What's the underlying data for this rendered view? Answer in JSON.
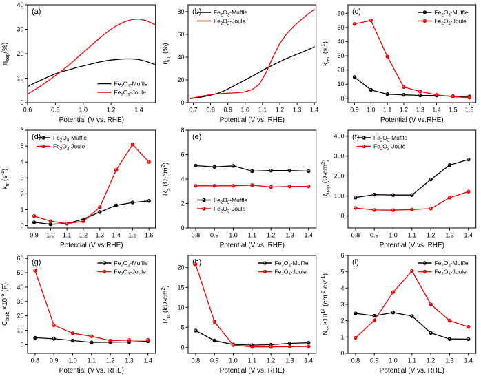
{
  "figure": {
    "background": "#ffffff",
    "series_colors": {
      "muffle": "#000000",
      "joule": "#ee0000"
    }
  },
  "chart_data": [
    {
      "id": "a",
      "type": "line",
      "tag": "(a)",
      "xlabel": "Potential (V vs. RHE)",
      "ylabel": "η~sep~(%)",
      "xlim": [
        0.6,
        1.52
      ],
      "ylim": [
        0,
        40
      ],
      "xticks": [
        "0.6",
        "0.8",
        "1.0",
        "1.2",
        "1.4"
      ],
      "yticks": [
        "0",
        "10",
        "20",
        "30",
        "40"
      ],
      "grid": false,
      "legend": {
        "position": "bottom-right",
        "show_marker": false
      },
      "series": [
        {
          "name": "Fe~2~O~3~-Muffle",
          "color": "#000000",
          "marker": false,
          "x": [
            0.6,
            0.65,
            0.7,
            0.75,
            0.8,
            0.85,
            0.9,
            0.95,
            1.0,
            1.05,
            1.1,
            1.15,
            1.2,
            1.25,
            1.3,
            1.35,
            1.4,
            1.45,
            1.52
          ],
          "y": [
            6.5,
            8.0,
            9.3,
            10.6,
            11.8,
            12.7,
            13.5,
            14.3,
            15.0,
            15.7,
            16.4,
            17.0,
            17.4,
            17.7,
            17.9,
            17.9,
            17.6,
            16.9,
            15.5
          ]
        },
        {
          "name": "Fe~2~O~3~-Joule",
          "color": "#ee0000",
          "marker": false,
          "x": [
            0.6,
            0.65,
            0.7,
            0.75,
            0.8,
            0.85,
            0.9,
            0.95,
            1.0,
            1.05,
            1.1,
            1.15,
            1.2,
            1.25,
            1.3,
            1.35,
            1.4,
            1.45,
            1.52
          ],
          "y": [
            3.5,
            5.2,
            7.0,
            9.0,
            11.0,
            13.2,
            15.5,
            18.0,
            20.5,
            23.0,
            25.5,
            27.9,
            30.0,
            31.8,
            33.1,
            34.0,
            34.2,
            33.6,
            31.8
          ]
        }
      ]
    },
    {
      "id": "b",
      "type": "line",
      "tag": "(b)",
      "xlabel": "Potential (V vs. RHE)",
      "ylabel": "η~inj~ (%)",
      "xlim": [
        0.67,
        1.41
      ],
      "ylim": [
        0,
        86
      ],
      "xticks": [
        "0.7",
        "0.8",
        "0.9",
        "1.0",
        "1.1",
        "1.2",
        "1.3",
        "1.4"
      ],
      "yticks": [
        "0",
        "20",
        "40",
        "60",
        "80"
      ],
      "grid": false,
      "legend": {
        "position": "top-left",
        "show_marker": false
      },
      "series": [
        {
          "name": "Fe~2~O~3~-Muffle",
          "color": "#000000",
          "marker": false,
          "x": [
            0.68,
            0.72,
            0.76,
            0.8,
            0.84,
            0.88,
            0.92,
            0.96,
            1.0,
            1.04,
            1.08,
            1.12,
            1.16,
            1.2,
            1.24,
            1.28,
            1.32,
            1.36,
            1.4
          ],
          "y": [
            3.5,
            4.2,
            5.2,
            6.5,
            8.2,
            10.5,
            13.5,
            16.8,
            20.0,
            23.2,
            26.5,
            30.0,
            33.0,
            36.0,
            38.8,
            41.3,
            43.8,
            46.3,
            49.0
          ]
        },
        {
          "name": "Fe~2~O~3~-Joule",
          "color": "#ee0000",
          "marker": false,
          "x": [
            0.68,
            0.72,
            0.76,
            0.8,
            0.84,
            0.88,
            0.92,
            0.96,
            1.0,
            1.04,
            1.08,
            1.12,
            1.16,
            1.2,
            1.24,
            1.28,
            1.32,
            1.36,
            1.4
          ],
          "y": [
            3.5,
            4.8,
            6.0,
            7.0,
            7.8,
            8.2,
            8.5,
            8.8,
            9.5,
            11.5,
            16.0,
            26.0,
            40.0,
            52.0,
            60.5,
            67.0,
            72.5,
            77.5,
            82.0
          ]
        }
      ]
    },
    {
      "id": "c",
      "type": "line",
      "tag": "(c)",
      "xlabel": "Potential (V vs.RHE)",
      "ylabel": "k~rec~ (s^-1^)",
      "xlim": [
        0.86,
        1.64
      ],
      "ylim": [
        -3,
        66
      ],
      "xticks": [
        "0.9",
        "1.0",
        "1.1",
        "1.2",
        "1.3",
        "1.4",
        "1.5",
        "1.6"
      ],
      "yticks": [
        "0",
        "10",
        "20",
        "30",
        "40",
        "50",
        "60"
      ],
      "grid": false,
      "legend": {
        "position": "top-right",
        "show_marker": true
      },
      "series": [
        {
          "name": "Fe~2~O~3~-Muffle",
          "color": "#000000",
          "marker": true,
          "x": [
            0.9,
            1.0,
            1.1,
            1.2,
            1.3,
            1.4,
            1.5,
            1.6
          ],
          "y": [
            15,
            6,
            3,
            2.5,
            2.1,
            2.0,
            1.5,
            1.3
          ]
        },
        {
          "name": "Fe~2~O~3~-Joule",
          "color": "#ee0000",
          "marker": true,
          "x": [
            0.9,
            1.0,
            1.1,
            1.2,
            1.3,
            1.4,
            1.5,
            1.6
          ],
          "y": [
            52.5,
            55,
            29.5,
            8,
            4.8,
            2.5,
            1.2,
            0.5
          ]
        }
      ]
    },
    {
      "id": "d",
      "type": "line",
      "tag": "(d)",
      "xlabel": "Potential (V vs.RHE)",
      "ylabel": "k~tr~ (s^-1^)",
      "xlim": [
        0.86,
        1.64
      ],
      "ylim": [
        -0.15,
        6
      ],
      "xticks": [
        "0.9",
        "1.0",
        "1.1",
        "1.2",
        "1.3",
        "1.4",
        "1.5",
        "1.6"
      ],
      "yticks": [
        "0",
        "1",
        "2",
        "3",
        "4",
        "5",
        "6"
      ],
      "grid": false,
      "legend": {
        "position": "top-left",
        "show_marker": true
      },
      "series": [
        {
          "name": "Fe~2~O~3~-Muffle",
          "color": "#000000",
          "marker": true,
          "x": [
            0.9,
            1.0,
            1.1,
            1.2,
            1.3,
            1.4,
            1.5,
            1.6
          ],
          "y": [
            0.2,
            0.08,
            0.12,
            0.4,
            0.85,
            1.27,
            1.45,
            1.55
          ]
        },
        {
          "name": "Fe~2~O~3~-Joule",
          "color": "#ee0000",
          "marker": true,
          "x": [
            0.9,
            1.0,
            1.1,
            1.2,
            1.3,
            1.4,
            1.5,
            1.6
          ],
          "y": [
            0.6,
            0.28,
            0.12,
            0.27,
            1.15,
            3.5,
            5.1,
            4.0
          ]
        }
      ]
    },
    {
      "id": "e",
      "type": "line",
      "tag": "(e)",
      "xlabel": "Potential (V vs. RHE)",
      "ylabel": "R~s~ (Ω·cm^2^)",
      "xlim": [
        0.76,
        1.44
      ],
      "ylim": [
        0,
        8
      ],
      "xticks": [
        "0.8",
        "0.9",
        "1.0",
        "1.1",
        "1.2",
        "1.3",
        "1.4"
      ],
      "yticks": [
        "0",
        "2",
        "4",
        "6",
        "8"
      ],
      "grid": false,
      "legend": {
        "position": "bottom-left",
        "show_marker": true
      },
      "series": [
        {
          "name": "Fe~2~O~3~-Muffle",
          "color": "#000000",
          "marker": true,
          "x": [
            0.8,
            0.9,
            1.0,
            1.1,
            1.2,
            1.3,
            1.4
          ],
          "y": [
            5.1,
            5.0,
            5.08,
            4.65,
            4.7,
            4.7,
            4.65
          ]
        },
        {
          "name": "Fe~2~O~3~-Joule",
          "color": "#ee0000",
          "marker": true,
          "x": [
            0.8,
            0.9,
            1.0,
            1.1,
            1.2,
            1.3,
            1.4
          ],
          "y": [
            3.45,
            3.45,
            3.45,
            3.5,
            3.35,
            3.4,
            3.4
          ]
        }
      ]
    },
    {
      "id": "f",
      "type": "line",
      "tag": "(f)",
      "xlabel": "Potential (V vs. RHE)",
      "ylabel": "R~trap~ (Ω·cm^2^)",
      "xlim": [
        0.76,
        1.44
      ],
      "ylim": [
        -60,
        430
      ],
      "xticks": [
        "0.8",
        "0.9",
        "1.0",
        "1.1",
        "1.2",
        "1.3",
        "1.4"
      ],
      "yticks": [
        "0",
        "100",
        "200",
        "300",
        "400"
      ],
      "grid": false,
      "legend": {
        "position": "top-left",
        "show_marker": true
      },
      "series": [
        {
          "name": "Fe~2~O~3~-Muffle",
          "color": "#000000",
          "marker": true,
          "x": [
            0.8,
            0.9,
            1.0,
            1.1,
            1.2,
            1.3,
            1.4
          ],
          "y": [
            93,
            107,
            105,
            105,
            183,
            255,
            283
          ]
        },
        {
          "name": "Fe~2~O~3~-Joule",
          "color": "#ee0000",
          "marker": true,
          "x": [
            0.8,
            0.9,
            1.0,
            1.1,
            1.2,
            1.3,
            1.4
          ],
          "y": [
            40,
            30,
            29,
            32,
            37,
            92,
            122
          ]
        }
      ]
    },
    {
      "id": "g",
      "type": "line",
      "tag": "(g)",
      "xlabel": "Potential (V vs. RHE)",
      "ylabel": "C~bulk~ ×10^-5^ (F)",
      "xlim": [
        0.76,
        1.44
      ],
      "ylim": [
        -6,
        62
      ],
      "xticks": [
        "0.8",
        "0.9",
        "1.0",
        "1.1",
        "1.2",
        "1.3",
        "1.4"
      ],
      "yticks": [
        "0",
        "10",
        "20",
        "30",
        "40",
        "50",
        "60"
      ],
      "grid": false,
      "legend": {
        "position": "top-right",
        "show_marker": true
      },
      "series": [
        {
          "name": "Fe~2~O~3~-Muffle",
          "color": "#000000",
          "marker": true,
          "x": [
            0.8,
            0.9,
            1.0,
            1.1,
            1.2,
            1.3,
            1.4
          ],
          "y": [
            4.8,
            4.1,
            2.9,
            1.6,
            1.7,
            1.9,
            2.4
          ]
        },
        {
          "name": "Fe~2~O~3~-Joule",
          "color": "#ee0000",
          "marker": true,
          "x": [
            0.8,
            0.9,
            1.0,
            1.1,
            1.2,
            1.3,
            1.4
          ],
          "y": [
            51.5,
            13.5,
            8.0,
            5.8,
            2.8,
            3.2,
            3.3
          ]
        }
      ]
    },
    {
      "id": "h",
      "type": "line",
      "tag": "(h)",
      "xlabel": "Potential (V vs. RHE)",
      "ylabel": "R~ct~ (kΩ·cm^2^)",
      "xlim": [
        0.76,
        1.44
      ],
      "ylim": [
        -1.5,
        23
      ],
      "xticks": [
        "0.8",
        "0.9",
        "1.0",
        "1.1",
        "1.2",
        "1.3",
        "1.4"
      ],
      "yticks": [
        "0",
        "5",
        "10",
        "15",
        "20"
      ],
      "grid": false,
      "legend": {
        "position": "top-right",
        "show_marker": true
      },
      "series": [
        {
          "name": "Fe~2~O~3~-Muffle",
          "color": "#000000",
          "marker": true,
          "x": [
            0.8,
            0.9,
            1.0,
            1.1,
            1.2,
            1.3,
            1.4
          ],
          "y": [
            4.2,
            1.7,
            0.7,
            0.55,
            0.65,
            1.0,
            1.15
          ]
        },
        {
          "name": "Fe~2~O~3~-Joule",
          "color": "#ee0000",
          "marker": true,
          "x": [
            0.8,
            0.9,
            1.0,
            1.1,
            1.2,
            1.3,
            1.4
          ],
          "y": [
            20.8,
            6.4,
            0.55,
            0.1,
            0.1,
            0.15,
            0.2
          ]
        }
      ]
    },
    {
      "id": "i",
      "type": "line",
      "tag": "(i)",
      "xlabel": "Potential (V vs. RHE)",
      "ylabel": "N~ss~×10^14^ (cm^-2^ eV^-1^)",
      "xlim": [
        0.76,
        1.44
      ],
      "ylim": [
        0,
        6
      ],
      "xticks": [
        "0.8",
        "0.9",
        "1.0",
        "1.1",
        "1.2",
        "1.3",
        "1.4"
      ],
      "yticks": [
        "0",
        "1",
        "2",
        "3",
        "4",
        "5",
        "6"
      ],
      "grid": false,
      "legend": {
        "position": "top-right",
        "show_marker": true
      },
      "series": [
        {
          "name": "Fe~2~O~3~-Muffle",
          "color": "#000000",
          "marker": true,
          "x": [
            0.8,
            0.9,
            1.0,
            1.1,
            1.2,
            1.3,
            1.4
          ],
          "y": [
            2.45,
            2.3,
            2.5,
            2.28,
            1.25,
            0.88,
            0.87
          ]
        },
        {
          "name": "Fe~2~O~3~-Joule",
          "color": "#ee0000",
          "marker": true,
          "x": [
            0.8,
            0.9,
            1.0,
            1.1,
            1.2,
            1.3,
            1.4
          ],
          "y": [
            0.95,
            2.02,
            3.75,
            5.05,
            3.0,
            2.0,
            1.62
          ]
        }
      ]
    }
  ]
}
